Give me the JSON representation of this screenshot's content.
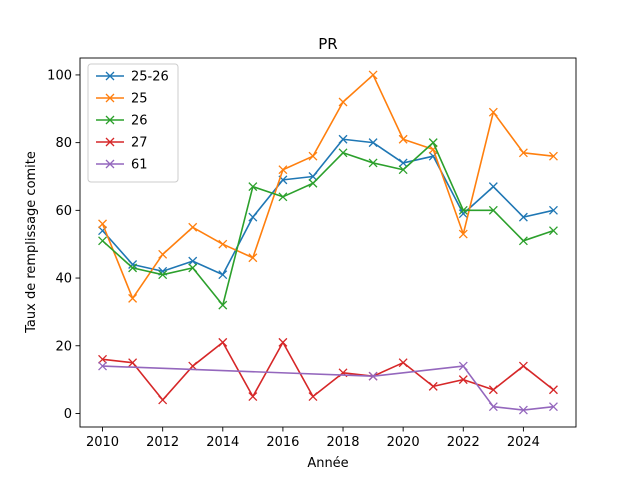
{
  "chart_data": {
    "type": "line",
    "title": "PR",
    "xlabel": "Année",
    "ylabel": "Taux de remplissage comite",
    "xlim": [
      2009.25,
      2025.75
    ],
    "ylim": [
      -4,
      105
    ],
    "x_ticks": [
      2010,
      2012,
      2014,
      2016,
      2018,
      2020,
      2022,
      2024
    ],
    "y_ticks": [
      0,
      20,
      40,
      60,
      80,
      100
    ],
    "grid": false,
    "legend_position": "top-left",
    "marker": "x",
    "series": [
      {
        "name": "25-26",
        "color": "#1f77b4",
        "x": [
          2010,
          2011,
          2012,
          2013,
          2014,
          2015,
          2016,
          2017,
          2018,
          2019,
          2020,
          2021,
          2022,
          2023,
          2024,
          2025
        ],
        "values": [
          54,
          44,
          42,
          45,
          41,
          58,
          69,
          70,
          81,
          80,
          74,
          76,
          59,
          67,
          58,
          60
        ]
      },
      {
        "name": "25",
        "color": "#ff7f0e",
        "x": [
          2010,
          2011,
          2012,
          2013,
          2014,
          2015,
          2016,
          2017,
          2018,
          2019,
          2020,
          2021,
          2022,
          2023,
          2024,
          2025
        ],
        "values": [
          56,
          34,
          47,
          55,
          50,
          46,
          72,
          76,
          92,
          100,
          81,
          78,
          53,
          89,
          77,
          76
        ]
      },
      {
        "name": "26",
        "color": "#2ca02c",
        "x": [
          2010,
          2011,
          2012,
          2013,
          2014,
          2015,
          2016,
          2017,
          2018,
          2019,
          2020,
          2021,
          2022,
          2023,
          2024,
          2025
        ],
        "values": [
          51,
          43,
          41,
          43,
          32,
          67,
          64,
          68,
          77,
          74,
          72,
          80,
          60,
          60,
          51,
          54
        ]
      },
      {
        "name": "27",
        "color": "#d62728",
        "x": [
          2010,
          2011,
          2012,
          2013,
          2014,
          2015,
          2016,
          2017,
          2018,
          2019,
          2020,
          2021,
          2022,
          2023,
          2024,
          2025
        ],
        "values": [
          16,
          15,
          4,
          14,
          21,
          5,
          21,
          5,
          12,
          11,
          15,
          8,
          10,
          7,
          14,
          7
        ]
      },
      {
        "name": "61",
        "color": "#9467bd",
        "x": [
          2010,
          2019,
          2022,
          2023,
          2024,
          2025
        ],
        "values": [
          14,
          11,
          14,
          2,
          1,
          2
        ]
      }
    ]
  }
}
